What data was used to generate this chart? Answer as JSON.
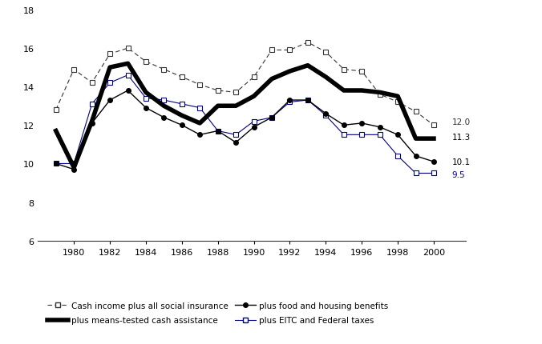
{
  "years": [
    1979,
    1980,
    1981,
    1982,
    1983,
    1984,
    1985,
    1986,
    1987,
    1988,
    1989,
    1990,
    1991,
    1992,
    1993,
    1994,
    1995,
    1996,
    1997,
    1998,
    1999,
    2000
  ],
  "cash_plus_social": [
    12.8,
    14.9,
    14.2,
    15.7,
    16.0,
    15.3,
    14.9,
    14.5,
    14.1,
    13.8,
    13.7,
    14.5,
    15.9,
    15.9,
    16.3,
    15.8,
    14.9,
    14.8,
    13.6,
    13.2,
    12.7,
    12.0
  ],
  "plus_means_tested": [
    11.7,
    9.8,
    12.2,
    15.0,
    15.2,
    13.7,
    13.0,
    12.5,
    12.1,
    13.0,
    13.0,
    13.5,
    14.4,
    14.8,
    15.1,
    14.5,
    13.8,
    13.8,
    13.7,
    13.5,
    11.3,
    11.3
  ],
  "plus_food_housing": [
    10.0,
    9.7,
    12.1,
    13.3,
    13.8,
    12.9,
    12.4,
    12.0,
    11.5,
    11.7,
    11.1,
    11.9,
    12.4,
    13.3,
    13.3,
    12.6,
    12.0,
    12.1,
    11.9,
    11.5,
    10.4,
    10.1
  ],
  "plus_eitc_federal": [
    10.0,
    10.0,
    13.1,
    14.2,
    14.6,
    13.4,
    13.3,
    13.1,
    12.9,
    11.7,
    11.5,
    12.2,
    12.4,
    13.2,
    13.3,
    12.5,
    11.5,
    11.5,
    11.5,
    10.4,
    9.5,
    9.5
  ],
  "end_labels": [
    "12.0",
    "11.3",
    "10.1",
    "9.5"
  ],
  "ylim": [
    6,
    18
  ],
  "yticks": [
    6,
    8,
    10,
    12,
    14,
    16,
    18
  ],
  "xticks": [
    1980,
    1982,
    1984,
    1986,
    1988,
    1990,
    1992,
    1994,
    1996,
    1998,
    2000
  ],
  "color_social": "#333333",
  "color_means": "#000000",
  "color_food": "#000000",
  "color_eitc": "#000080"
}
